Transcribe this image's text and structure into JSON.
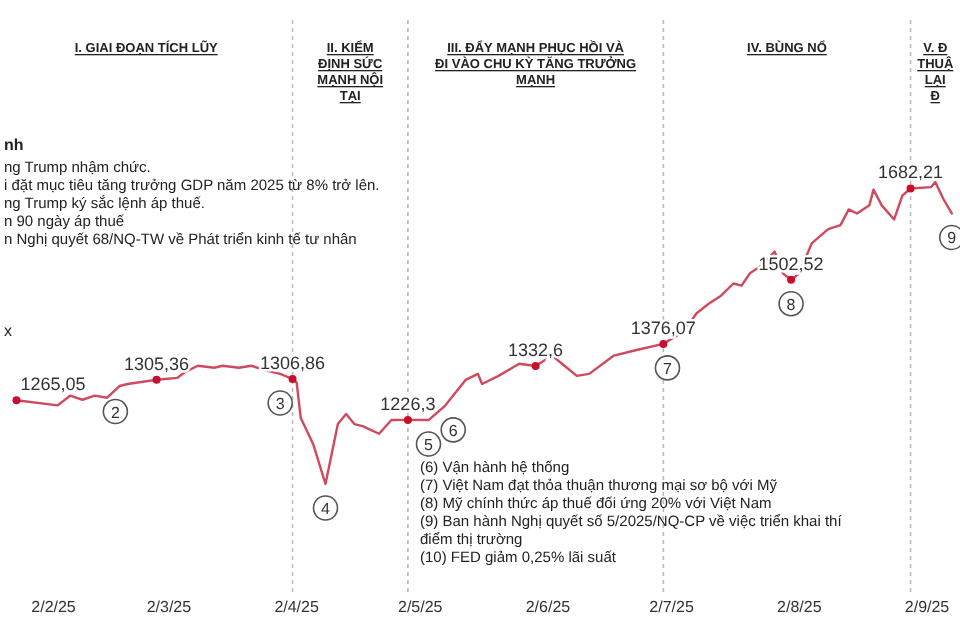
{
  "chart_data": {
    "type": "line",
    "ylabel": "x",
    "xlim": [
      "2025-01-20",
      "2025-09-10"
    ],
    "xticks": [
      {
        "value": "2025-02-02",
        "label": "2/2/25"
      },
      {
        "value": "2025-03-02",
        "label": "2/3/25"
      },
      {
        "value": "2025-04-02",
        "label": "2/4/25"
      },
      {
        "value": "2025-05-02",
        "label": "2/5/25"
      },
      {
        "value": "2025-06-02",
        "label": "2/6/25"
      },
      {
        "value": "2025-07-02",
        "label": "2/7/25"
      },
      {
        "value": "2025-08-02",
        "label": "2/8/25"
      },
      {
        "value": "2025-09-02",
        "label": "2/9/25"
      }
    ],
    "tick_labels": "x",
    "line_style": "solid",
    "series": [
      {
        "color": "#d04a5e",
        "x": [
          "2025-01-24",
          "2025-02-03",
          "2025-02-06",
          "2025-02-09",
          "2025-02-12",
          "2025-02-15",
          "2025-02-18",
          "2025-02-20",
          "2025-02-27",
          "2025-03-04",
          "2025-03-06",
          "2025-03-09",
          "2025-03-13",
          "2025-03-15",
          "2025-03-19",
          "2025-03-22",
          "2025-03-25",
          "2025-03-29",
          "2025-04-01",
          "2025-04-02",
          "2025-04-03",
          "2025-04-06",
          "2025-04-09",
          "2025-04-12",
          "2025-04-14",
          "2025-04-16",
          "2025-04-18",
          "2025-04-22",
          "2025-04-25",
          "2025-04-29",
          "2025-05-04",
          "2025-05-08",
          "2025-05-13",
          "2025-05-16",
          "2025-05-17",
          "2025-05-21",
          "2025-05-26",
          "2025-05-30",
          "2025-06-03",
          "2025-06-06",
          "2025-06-09",
          "2025-06-12",
          "2025-06-18",
          "2025-06-24",
          "2025-06-30",
          "2025-07-04",
          "2025-07-07",
          "2025-07-08",
          "2025-07-11",
          "2025-07-14",
          "2025-07-17",
          "2025-07-19",
          "2025-07-21",
          "2025-07-24",
          "2025-07-27",
          "2025-07-29",
          "2025-07-31",
          "2025-08-02",
          "2025-08-05",
          "2025-08-09",
          "2025-08-12",
          "2025-08-14",
          "2025-08-16",
          "2025-08-19",
          "2025-08-20",
          "2025-08-22",
          "2025-08-25",
          "2025-08-27",
          "2025-08-29",
          "2025-09-03",
          "2025-09-04",
          "2025-09-06",
          "2025-09-08"
        ],
        "values": [
          1265.05,
          1255,
          1274,
          1266,
          1274,
          1270,
          1293,
          1297,
          1305.36,
          1309,
          1321,
          1333,
          1329,
          1333,
          1329,
          1333,
          1325,
          1317,
          1306.86,
          1300,
          1230,
          1179,
          1100,
          1218,
          1238,
          1218,
          1214,
          1199,
          1226,
          1226.3,
          1226,
          1254,
          1305,
          1317,
          1297,
          1313,
          1337,
          1332.6,
          1353,
          1333,
          1313,
          1317,
          1353,
          1365,
          1376.07,
          1396,
          1424,
          1436,
          1455,
          1471,
          1495,
          1491,
          1515,
          1531,
          1558,
          1515,
          1502.52,
          1515,
          1574,
          1602,
          1610,
          1641,
          1633,
          1649,
          1680,
          1649,
          1621,
          1668,
          1682.21,
          1685,
          1695,
          1661,
          1633
        ],
        "value_labels": [
          "1265,05",
          null,
          null,
          null,
          null,
          null,
          null,
          null,
          "1305,36",
          null,
          null,
          null,
          null,
          null,
          null,
          null,
          null,
          null,
          "1306,86",
          null,
          null,
          null,
          null,
          null,
          null,
          null,
          null,
          null,
          null,
          "1226,3",
          null,
          null,
          null,
          null,
          null,
          null,
          null,
          "1332,6",
          null,
          null,
          null,
          null,
          null,
          null,
          "1376,07",
          null,
          null,
          null,
          null,
          null,
          null,
          null,
          null,
          null,
          null,
          null,
          "1502,52",
          null,
          null,
          null,
          null,
          null,
          null,
          null,
          null,
          null,
          null,
          null,
          "1682,21",
          null,
          null,
          null,
          null
        ]
      }
    ],
    "ref_lines": [
      {
        "axis": "x",
        "value": "2025-04-01",
        "color": "#bbbbbb",
        "line_style": "dotted"
      },
      {
        "axis": "x",
        "value": "2025-04-29",
        "color": "#bbbbbb",
        "line_style": "dotted"
      },
      {
        "axis": "x",
        "value": "2025-06-30",
        "color": "#bbbbbb",
        "line_style": "dotted"
      },
      {
        "axis": "x",
        "value": "2025-08-29",
        "color": "#bbbbbb",
        "line_style": "dotted"
      }
    ],
    "annotations": [
      "I. GIAI ĐOẠN TÍCH LŨY",
      "II. KIỂM ĐỊNH SỨC MẠNH NỘI TẠI",
      "III. ĐẨY MẠNH PHỤC HỒI VÀ ĐI VÀO CHU KỲ TĂNG TRƯỞNG MẠNH",
      "IV. BÙNG NỔ",
      "V. Đ THUẬ LẠI Đ",
      "nh",
      "ng Trump nhậm chức.",
      "i đặt mục tiêu tăng trưởng GDP năm 2025 từ 8% trở lên.",
      "ng Trump ký sắc lệnh áp thuế.",
      "n 90 ngày áp thuế",
      "n Nghị quyết 68/NQ-TW về Phát triển kinh tế tư nhân",
      "(6) Vận hành hệ thống",
      "(7) Việt Nam đạt thỏa thuận thương mại sơ bộ với Mỹ",
      "(8) Mỹ chính thức áp thuế đối ứng 20% với Việt Nam",
      "(9) Ban hành Nghị quyết số 5/2025/NQ-CP về việc triển khai thí điểm thị trường",
      "(10) FED giảm 0,25% lãi suất",
      {
        "text": "2",
        "x": "2025-02-17",
        "y": 1290
      },
      {
        "text": "3",
        "x": "2025-03-29",
        "y": 1306.86
      },
      {
        "text": "4",
        "x": "2025-04-09",
        "y": 1100
      },
      {
        "text": "5",
        "x": "2025-05-04",
        "y": 1226
      },
      {
        "text": "6",
        "x": "2025-05-10",
        "y": 1254
      },
      {
        "text": "7",
        "x": "2025-07-01",
        "y": 1376.07
      },
      {
        "text": "8",
        "x": "2025-07-31",
        "y": 1502.52
      },
      {
        "text": "9",
        "x": "2025-09-08",
        "y": 1633
      }
    ]
  }
}
